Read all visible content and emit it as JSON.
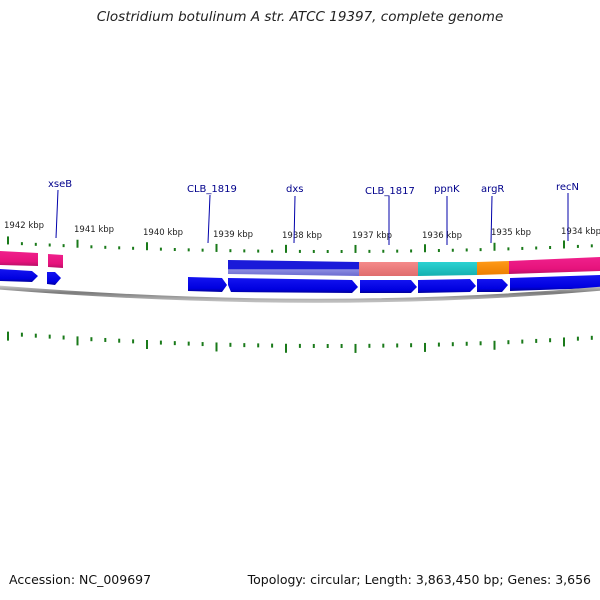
{
  "title": "Clostridium botulinum A str. ATCC 19397, complete genome",
  "accession": "Accession: NC_009697",
  "summary": "Topology: circular; Length: 3,863,450 bp; Genes: 3,656",
  "ruler_labels": [
    {
      "id": "1942",
      "text": "1942 kbp"
    },
    {
      "id": "1941",
      "text": "1941 kbp"
    },
    {
      "id": "1940",
      "text": "1940 kbp"
    },
    {
      "id": "1939",
      "text": "1939 kbp"
    },
    {
      "id": "1938",
      "text": "1938 kbp"
    },
    {
      "id": "1937",
      "text": "1937 kbp"
    },
    {
      "id": "1936",
      "text": "1936 kbp"
    },
    {
      "id": "1935",
      "text": "1935 kbp"
    },
    {
      "id": "1934",
      "text": "1934 kbp"
    }
  ],
  "gene_labels": [
    {
      "id": "xseB",
      "text": "xseB"
    },
    {
      "id": "clb1819",
      "text": "CLB_1819"
    },
    {
      "id": "dxs",
      "text": "dxs"
    },
    {
      "id": "clb1817",
      "text": "CLB_1817"
    },
    {
      "id": "ppnK",
      "text": "ppnK"
    },
    {
      "id": "argR",
      "text": "argR"
    },
    {
      "id": "recN",
      "text": "recN"
    }
  ],
  "colors": {
    "text": "#222222",
    "gene_arrow": "#0000ee",
    "label_line": "#0000aa",
    "gene_label": "#00008b",
    "tick": "#1a7a1a",
    "backbone": "#888888",
    "feature_magenta": "#e8157e",
    "feature_blue": "#1a1ad9",
    "feature_salmon": "#f08080",
    "feature_cyan": "#20c8c8",
    "feature_orange": "#ff8c00"
  }
}
